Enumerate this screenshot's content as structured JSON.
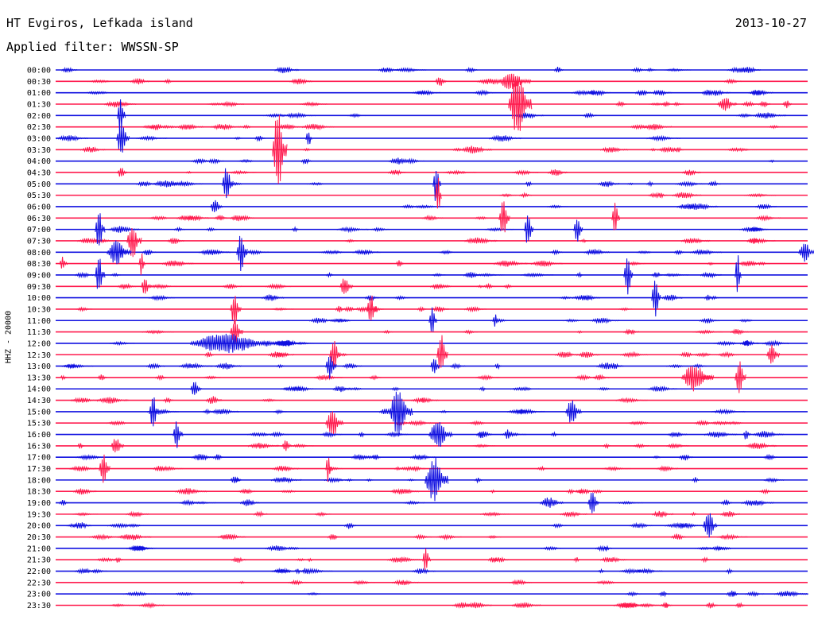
{
  "header": {
    "station": "HT Evgiros, Lefkada island",
    "date": "2013-10-27",
    "filter_label": "Applied filter: WWSSN-SP"
  },
  "channel_label": "HHZ - 20000",
  "colors": {
    "even_rows": "#1010e0",
    "odd_rows": "#ff1a4d",
    "background": "#ffffff"
  },
  "time_labels": [
    "00:00",
    "00:30",
    "01:00",
    "01:30",
    "02:00",
    "02:30",
    "03:00",
    "03:30",
    "04:00",
    "04:30",
    "05:00",
    "05:30",
    "06:00",
    "06:30",
    "07:00",
    "07:30",
    "08:00",
    "08:30",
    "09:00",
    "09:30",
    "10:00",
    "10:30",
    "11:00",
    "11:30",
    "12:00",
    "12:30",
    "13:00",
    "13:30",
    "14:00",
    "14:30",
    "15:00",
    "15:30",
    "16:00",
    "16:30",
    "17:00",
    "17:30",
    "18:00",
    "18:30",
    "19:00",
    "19:30",
    "20:00",
    "20:30",
    "21:00",
    "21:30",
    "22:00",
    "22:30",
    "23:00",
    "23:30"
  ]
}
